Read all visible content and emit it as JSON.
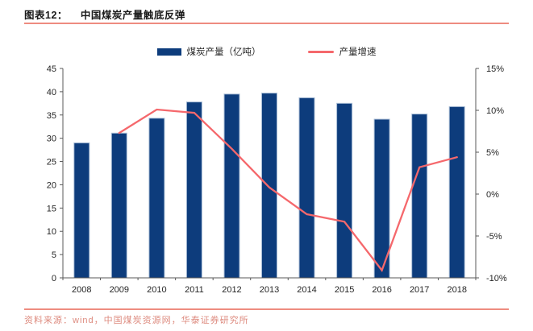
{
  "header": {
    "label": "图表12：",
    "title": "中国煤炭产量触底反弹"
  },
  "legend": [
    {
      "type": "bar",
      "label": "煤炭产量（亿吨）"
    },
    {
      "type": "line",
      "label": "产量增速"
    }
  ],
  "footer": {
    "source": "资料来源：wind，中国煤炭资源网，华泰证券研究所"
  },
  "colors": {
    "bar": "#0d3c7c",
    "bar_border": "#a9bdd6",
    "line": "#f5686c",
    "rule": "#ee8c80",
    "source_text": "#dd8a7e",
    "axis": "#595959",
    "tick_text": "#262626"
  },
  "chart_data": {
    "type": "bar",
    "title": "中国煤炭产量触底反弹",
    "categories": [
      "2008",
      "2009",
      "2010",
      "2011",
      "2012",
      "2013",
      "2014",
      "2015",
      "2016",
      "2017",
      "2018"
    ],
    "series": [
      {
        "name": "煤炭产量（亿吨）",
        "type": "bar",
        "axis": "left",
        "values": [
          29.0,
          31.1,
          34.3,
          37.8,
          39.5,
          39.7,
          38.7,
          37.5,
          34.1,
          35.2,
          36.8
        ]
      },
      {
        "name": "产量增速",
        "type": "line",
        "axis": "right",
        "unit": "%",
        "values": [
          null,
          7.3,
          10.1,
          9.7,
          5.4,
          0.8,
          -2.4,
          -3.3,
          -9.1,
          3.2,
          4.4
        ]
      }
    ],
    "left_axis": {
      "min": 0,
      "max": 45,
      "step": 5,
      "ticks": [
        0,
        5,
        10,
        15,
        20,
        25,
        30,
        35,
        40,
        45
      ],
      "tick_labels": [
        "0",
        "5",
        "10",
        "15",
        "20",
        "25",
        "30",
        "35",
        "40",
        "45"
      ]
    },
    "right_axis": {
      "min": -10,
      "max": 15,
      "step": 5,
      "ticks": [
        -10,
        -5,
        0,
        5,
        10,
        15
      ],
      "tick_labels": [
        "-10%",
        "-5%",
        "0%",
        "5%",
        "10%",
        "15%"
      ]
    },
    "grid": false,
    "legend_position": "top"
  }
}
